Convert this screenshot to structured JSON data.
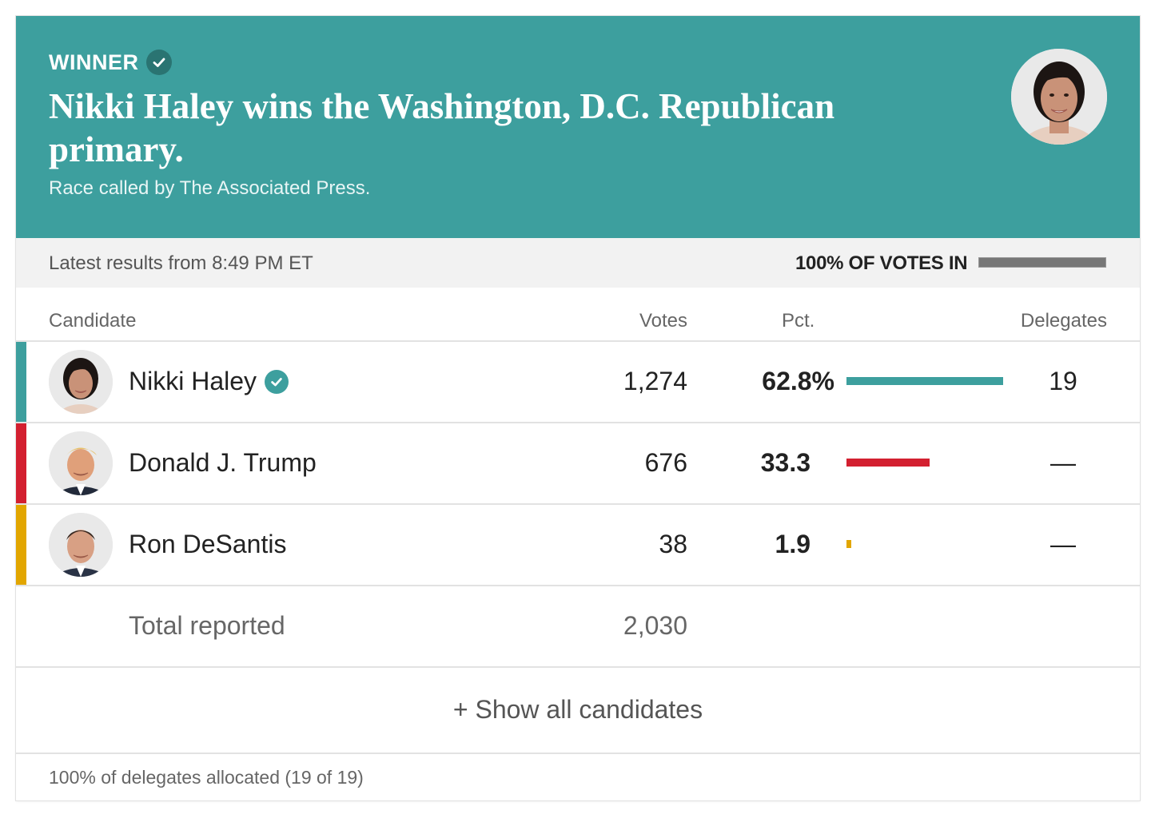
{
  "header": {
    "winner_label": "WINNER",
    "headline": "Nikki Haley wins the Washington, D.C. Republican primary.",
    "subhead": "Race called by The Associated Press.",
    "photo": "winner-portrait",
    "background_color": "#3d9f9e"
  },
  "status": {
    "latest": "Latest results from 8:49 PM ET",
    "votes_in": "100% OF VOTES IN",
    "reporting_fraction": 1.0
  },
  "columns": {
    "candidate": "Candidate",
    "votes": "Votes",
    "pct": "Pct.",
    "delegates": "Delegates"
  },
  "candidates": [
    {
      "name": "Nikki Haley",
      "winner": true,
      "votes": "1,274",
      "pct": "62.8%",
      "pct_value": 62.8,
      "delegates": "19",
      "color": "#3d9f9e",
      "photo": "haley-portrait"
    },
    {
      "name": "Donald J. Trump",
      "winner": false,
      "votes": "676",
      "pct": "33.3",
      "pct_value": 33.3,
      "delegates": "—",
      "color": "#d32030",
      "photo": "trump-portrait"
    },
    {
      "name": "Ron DeSantis",
      "winner": false,
      "votes": "38",
      "pct": "1.9",
      "pct_value": 1.9,
      "delegates": "—",
      "color": "#e2a600",
      "photo": "desantis-portrait"
    }
  ],
  "total": {
    "label": "Total reported",
    "votes": "2,030"
  },
  "show_all": "+ Show all candidates",
  "footer": "100% of delegates allocated (19 of 19)"
}
